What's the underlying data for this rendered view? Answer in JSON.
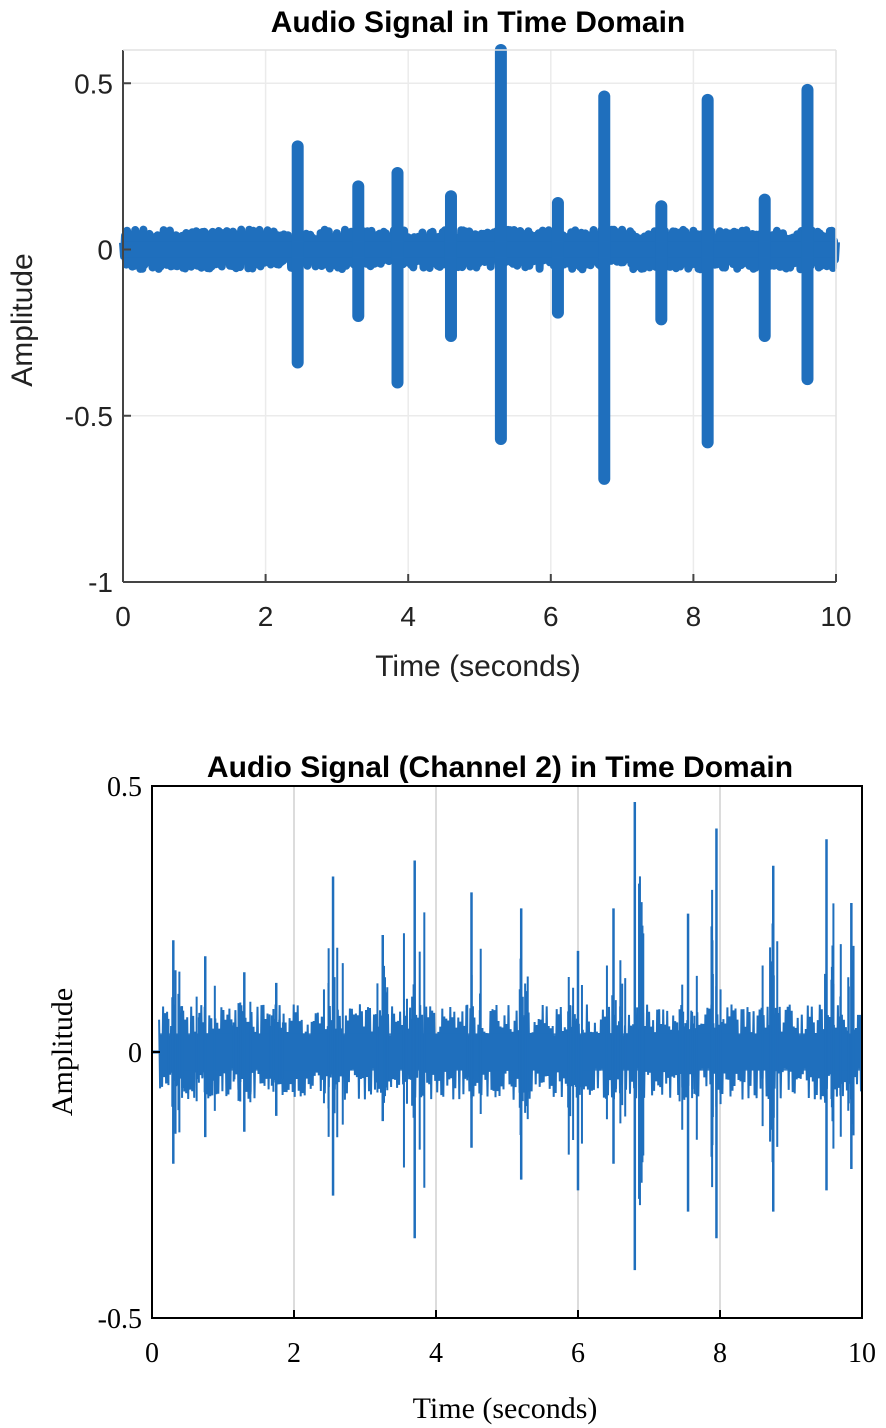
{
  "chart_data": [
    {
      "type": "line",
      "title": "Audio Signal in Time Domain",
      "xlabel": "Time (seconds)",
      "ylabel": "Amplitude",
      "xlim": [
        0,
        10
      ],
      "ylim": [
        -1,
        0.6
      ],
      "xticks": [
        0,
        2,
        4,
        6,
        8,
        10
      ],
      "xtick_labels": [
        "0",
        "2",
        "4",
        "6",
        "8",
        "10"
      ],
      "yticks": [
        -1,
        -0.5,
        0,
        0.5
      ],
      "ytick_labels": [
        "-1",
        "-0.5",
        "0",
        "0.5"
      ],
      "grid": true,
      "color": "#1f6fbd",
      "noise_level": 0.04,
      "bursts": [
        {
          "t": 2.45,
          "max": 0.31,
          "min": -0.34
        },
        {
          "t": 3.3,
          "max": 0.19,
          "min": -0.2
        },
        {
          "t": 3.85,
          "max": 0.23,
          "min": -0.4
        },
        {
          "t": 4.6,
          "max": 0.16,
          "min": -0.26
        },
        {
          "t": 5.3,
          "max": 0.6,
          "min": -0.57
        },
        {
          "t": 6.1,
          "max": 0.14,
          "min": -0.19
        },
        {
          "t": 6.75,
          "max": 0.46,
          "min": -0.69
        },
        {
          "t": 7.55,
          "max": 0.13,
          "min": -0.21
        },
        {
          "t": 8.2,
          "max": 0.45,
          "min": -0.58
        },
        {
          "t": 9.0,
          "max": 0.15,
          "min": -0.26
        },
        {
          "t": 9.6,
          "max": 0.48,
          "min": -0.39
        }
      ]
    },
    {
      "type": "line",
      "title": "Audio Signal (Channel 2) in Time Domain",
      "xlabel": "Time (seconds)",
      "ylabel": "Amplitude",
      "xlim": [
        0,
        10
      ],
      "ylim": [
        -0.5,
        0.5
      ],
      "xticks": [
        0,
        2,
        4,
        6,
        8,
        10
      ],
      "xtick_labels": [
        "0",
        "2",
        "4",
        "6",
        "8",
        "10"
      ],
      "yticks": [
        -0.5,
        0,
        0.5
      ],
      "ytick_labels": [
        "-0.5",
        "0",
        "0.5"
      ],
      "grid": true,
      "color": "#1f6fbd",
      "noise_level": 0.06,
      "signal_start": 0.1,
      "spikes": [
        {
          "t": 0.3,
          "max": 0.21,
          "min": -0.21
        },
        {
          "t": 0.75,
          "max": 0.18,
          "min": -0.16
        },
        {
          "t": 1.3,
          "max": 0.15,
          "min": -0.15
        },
        {
          "t": 1.75,
          "max": 0.13,
          "min": -0.12
        },
        {
          "t": 2.55,
          "max": 0.33,
          "min": -0.27
        },
        {
          "t": 3.25,
          "max": 0.22,
          "min": -0.13
        },
        {
          "t": 3.7,
          "max": 0.36,
          "min": -0.35
        },
        {
          "t": 4.5,
          "max": 0.3,
          "min": -0.18
        },
        {
          "t": 5.2,
          "max": 0.27,
          "min": -0.24
        },
        {
          "t": 6.0,
          "max": 0.19,
          "min": -0.26
        },
        {
          "t": 6.5,
          "max": 0.27,
          "min": -0.21
        },
        {
          "t": 6.8,
          "max": 0.47,
          "min": -0.41
        },
        {
          "t": 7.55,
          "max": 0.26,
          "min": -0.3
        },
        {
          "t": 7.95,
          "max": 0.42,
          "min": -0.35
        },
        {
          "t": 8.75,
          "max": 0.35,
          "min": -0.3
        },
        {
          "t": 9.5,
          "max": 0.4,
          "min": -0.26
        },
        {
          "t": 9.85,
          "max": 0.28,
          "min": -0.22
        }
      ]
    }
  ]
}
